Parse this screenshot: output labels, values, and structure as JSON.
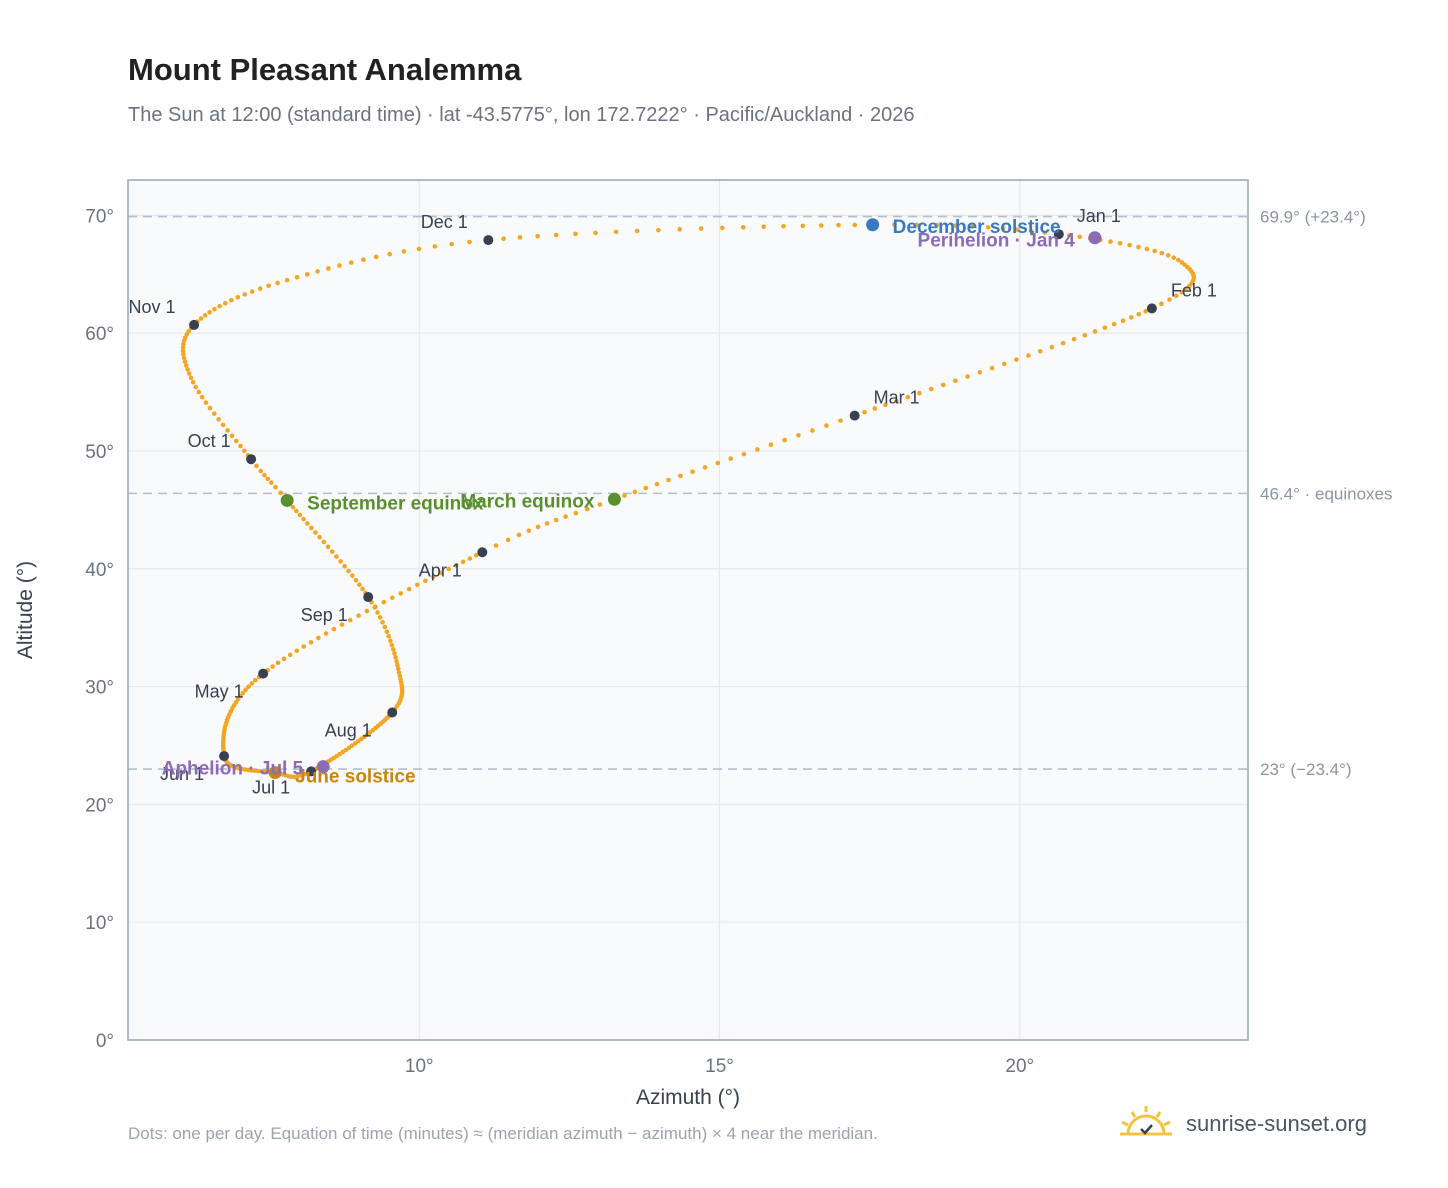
{
  "title": "Mount Pleasant Analemma",
  "subtitle": "The Sun at 12:00 (standard time) · lat -43.5775°, lon 172.7222° · Pacific/Auckland · 2026",
  "footnote": "Dots: one per day. Equation of time (minutes) ≈ (meridian azimuth − azimuth) × 4 near the meridian.",
  "brand": {
    "text": "sunrise-sunset.org",
    "icon": "sun-logo-icon"
  },
  "colors": {
    "curve": "#f2a623",
    "month": "#374151",
    "equinox": "#5a8f2e",
    "december_solstice": "#3a78c2",
    "june_solstice": "#c8860f",
    "perihelion_aphelion": "#8e6bb5",
    "plot_bg": "#f8fafc",
    "grid": "#e5e9ef",
    "reference": "#b4bfcc"
  },
  "chart_data": {
    "type": "scatter",
    "xlabel": "Azimuth (°)",
    "ylabel": "Altitude (°)",
    "xlim": [
      5.15,
      23.8
    ],
    "ylim": [
      0,
      73
    ],
    "x_ticks": [
      {
        "value": 10,
        "label": "10°"
      },
      {
        "value": 15,
        "label": "15°"
      },
      {
        "value": 20,
        "label": "20°"
      }
    ],
    "y_ticks": [
      {
        "value": 0,
        "label": "0°"
      },
      {
        "value": 10,
        "label": "10°"
      },
      {
        "value": 20,
        "label": "20°"
      },
      {
        "value": 30,
        "label": "30°"
      },
      {
        "value": 40,
        "label": "40°"
      },
      {
        "value": 50,
        "label": "50°"
      },
      {
        "value": 60,
        "label": "60°"
      },
      {
        "value": 70,
        "label": "70°"
      }
    ],
    "grid": true,
    "reference_lines": [
      {
        "value": 69.9,
        "label": "69.9° (+23.4°)"
      },
      {
        "value": 46.4,
        "label": "46.4° · equinoxes"
      },
      {
        "value": 23.0,
        "label": "23° (−23.4°)"
      }
    ],
    "curve_anchors": [
      {
        "day": 1,
        "az": 20.65,
        "alt": 68.4
      },
      {
        "day": 16,
        "az": 22.7,
        "alt": 66.0
      },
      {
        "day": 32,
        "az": 22.2,
        "alt": 62.1
      },
      {
        "day": 60,
        "az": 17.25,
        "alt": 53.0
      },
      {
        "day": 79,
        "az": 13.25,
        "alt": 45.9
      },
      {
        "day": 91,
        "az": 11.05,
        "alt": 41.4
      },
      {
        "day": 121,
        "az": 7.4,
        "alt": 31.1
      },
      {
        "day": 152,
        "az": 6.75,
        "alt": 24.1
      },
      {
        "day": 172,
        "az": 7.6,
        "alt": 22.7
      },
      {
        "day": 182,
        "az": 8.2,
        "alt": 22.8
      },
      {
        "day": 213,
        "az": 9.55,
        "alt": 27.8
      },
      {
        "day": 228,
        "az": 9.65,
        "alt": 31.5
      },
      {
        "day": 244,
        "az": 9.15,
        "alt": 37.6
      },
      {
        "day": 266,
        "az": 7.8,
        "alt": 45.8
      },
      {
        "day": 274,
        "az": 7.2,
        "alt": 49.3
      },
      {
        "day": 290,
        "az": 6.2,
        "alt": 56.2
      },
      {
        "day": 305,
        "az": 6.25,
        "alt": 60.7
      },
      {
        "day": 320,
        "az": 7.8,
        "alt": 64.5
      },
      {
        "day": 335,
        "az": 11.15,
        "alt": 67.9
      },
      {
        "day": 355,
        "az": 17.5,
        "alt": 69.2
      },
      {
        "day": 366,
        "az": 20.65,
        "alt": 68.4
      }
    ],
    "month_points": [
      {
        "label": "Jan 1",
        "az": 20.65,
        "alt": 68.4
      },
      {
        "label": "Feb 1",
        "az": 22.2,
        "alt": 62.1
      },
      {
        "label": "Mar 1",
        "az": 17.25,
        "alt": 53.0
      },
      {
        "label": "Apr 1",
        "az": 11.05,
        "alt": 41.4
      },
      {
        "label": "May 1",
        "az": 7.4,
        "alt": 31.1
      },
      {
        "label": "Jun 1",
        "az": 6.75,
        "alt": 24.1
      },
      {
        "label": "Jul 1",
        "az": 8.2,
        "alt": 22.8
      },
      {
        "label": "Aug 1",
        "az": 9.55,
        "alt": 27.8
      },
      {
        "label": "Sep 1",
        "az": 9.15,
        "alt": 37.6
      },
      {
        "label": "Oct 1",
        "az": 7.2,
        "alt": 49.3
      },
      {
        "label": "Nov 1",
        "az": 6.25,
        "alt": 60.7
      },
      {
        "label": "Dec 1",
        "az": 11.15,
        "alt": 67.9
      }
    ],
    "events": [
      {
        "label": "December solstice",
        "az": 17.55,
        "alt": 69.2,
        "kind": "december_solstice"
      },
      {
        "label": "Perihelion · Jan 4",
        "az": 21.25,
        "alt": 68.1,
        "kind": "perihelion_aphelion"
      },
      {
        "label": "March equinox",
        "az": 13.25,
        "alt": 45.9,
        "kind": "equinox"
      },
      {
        "label": "September equinox",
        "az": 7.8,
        "alt": 45.8,
        "kind": "equinox"
      },
      {
        "label": "June solstice",
        "az": 7.6,
        "alt": 22.7,
        "kind": "june_solstice"
      },
      {
        "label": "Aphelion · Jul 5",
        "az": 8.4,
        "alt": 23.2,
        "kind": "perihelion_aphelion"
      }
    ]
  }
}
